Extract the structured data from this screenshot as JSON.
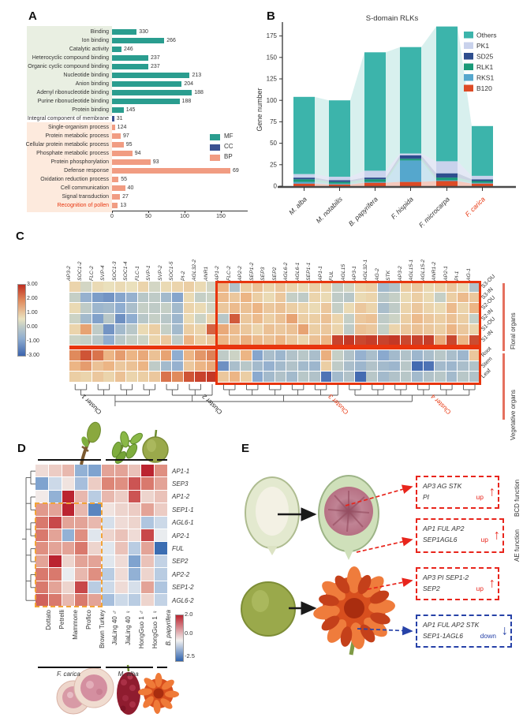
{
  "labels": {
    "a": "A",
    "b": "B",
    "c": "C",
    "d": "D",
    "e": "E"
  },
  "colors": {
    "accent_red": "#e8350e",
    "mf_green": "#2a9d8f",
    "cc_navy": "#3a5191",
    "bp_salmon": "#f19c82",
    "mf_tint": "#e9efe2",
    "bp_tint": "#fdeadd",
    "bracket_salmon": "#e5705e",
    "orange_dash": "#f2a437",
    "e_red": "#e8251c",
    "e_blue": "#2742a8"
  },
  "chart_data": [
    {
      "id": "A",
      "type": "bar",
      "orientation": "horizontal",
      "xlim": [
        0,
        170
      ],
      "xticks": [
        0,
        50,
        100,
        150
      ],
      "legend": [
        {
          "name": "MF",
          "color": "#2a9d8f"
        },
        {
          "name": "CC",
          "color": "#3a5191"
        },
        {
          "name": "BP",
          "color": "#f19c82"
        }
      ],
      "rows": [
        {
          "label": "Binding",
          "count": 330,
          "value": 34,
          "cat": "MF"
        },
        {
          "label": "Ion binding",
          "count": 266,
          "value": 72,
          "cat": "MF"
        },
        {
          "label": "Catalytic activity",
          "count": 246,
          "value": 13,
          "cat": "MF"
        },
        {
          "label": "Heterocyclic compound binding",
          "count": 237,
          "value": 50,
          "cat": "MF"
        },
        {
          "label": "Organic cyclic compound binding",
          "count": 237,
          "value": 50,
          "cat": "MF"
        },
        {
          "label": "Nucleotide binding",
          "count": 213,
          "value": 107,
          "cat": "MF"
        },
        {
          "label": "Anion binding",
          "count": 204,
          "value": 96,
          "cat": "MF"
        },
        {
          "label": "Adenyl ribonucleotide binding",
          "count": 188,
          "value": 110,
          "cat": "MF"
        },
        {
          "label": "Purine ribonucleotide binding",
          "count": 188,
          "value": 93,
          "cat": "MF"
        },
        {
          "label": "Protein binding",
          "count": 145,
          "value": 16,
          "cat": "MF"
        },
        {
          "label": "Integral component of membrane",
          "count": 31,
          "value": 3,
          "cat": "CC"
        },
        {
          "label": "Single-organism process",
          "count": 124,
          "value": 4,
          "cat": "BP"
        },
        {
          "label": "Protein metabolic process",
          "count": 97,
          "value": 12,
          "cat": "BP"
        },
        {
          "label": "Cellular protein metabolic process",
          "count": 95,
          "value": 16,
          "cat": "BP"
        },
        {
          "label": "Phosphate metabolic process",
          "count": 94,
          "value": 28,
          "cat": "BP"
        },
        {
          "label": "Protein phosphorylation",
          "count": 93,
          "value": 53,
          "cat": "BP"
        },
        {
          "label": "Defense response",
          "count": 69,
          "value": 163,
          "cat": "BP"
        },
        {
          "label": "Oxidation reduction process",
          "count": 55,
          "value": 9,
          "cat": "BP"
        },
        {
          "label": "Cell communication",
          "count": 40,
          "value": 18,
          "cat": "BP"
        },
        {
          "label": "Signal transduction",
          "count": 27,
          "value": 11,
          "cat": "BP"
        },
        {
          "label": "Recognition of pollen",
          "count": 13,
          "value": 8,
          "cat": "BP",
          "highlight": true
        }
      ]
    },
    {
      "id": "B",
      "type": "stacked-bar-flow",
      "title": "S-domain RLKs",
      "ylabel": "Gene number",
      "ylim": [
        0,
        190
      ],
      "yticks": [
        0,
        25,
        50,
        75,
        100,
        125,
        150,
        175
      ],
      "stack_order": [
        "B120",
        "RKS1",
        "RLK1",
        "SD25",
        "PK1",
        "Others"
      ],
      "legend": [
        {
          "name": "Others",
          "color": "#3cb4ab"
        },
        {
          "name": "PK1",
          "color": "#c9d2ec"
        },
        {
          "name": "SD25",
          "color": "#2e4e8e"
        },
        {
          "name": "RLK1",
          "color": "#199a78"
        },
        {
          "name": "RKS1",
          "color": "#55a7cd"
        },
        {
          "name": "B120",
          "color": "#dd4b26"
        }
      ],
      "species": [
        {
          "name": "M. alba",
          "highlight": false,
          "values": [
            3,
            2,
            3,
            2,
            4,
            90
          ]
        },
        {
          "name": "M. notabilis",
          "highlight": false,
          "values": [
            2,
            1,
            2,
            2,
            4,
            89
          ]
        },
        {
          "name": "B. papyrifera",
          "highlight": false,
          "values": [
            4,
            1,
            3,
            2,
            8,
            138
          ]
        },
        {
          "name": "F. hispida",
          "highlight": false,
          "values": [
            5,
            25,
            2,
            4,
            2,
            124
          ]
        },
        {
          "name": "F. microcarpa",
          "highlight": false,
          "values": [
            6,
            1,
            3,
            5,
            14,
            157
          ]
        },
        {
          "name": "F. carica",
          "highlight": true,
          "values": [
            3,
            1,
            2,
            2,
            4,
            58
          ]
        }
      ]
    },
    {
      "id": "C",
      "type": "heatmap",
      "colorbar_ticks": [
        "3.00",
        "2.00",
        "1.00",
        "0.00",
        "-1.00",
        "-3.00"
      ],
      "columns": [
        "AP3-2",
        "SOC1-2",
        "FLC-2",
        "SVP-4",
        "SOC1-3",
        "SOC1-4",
        "FLC-1",
        "SVP-1",
        "SVP-2",
        "SOC1-5",
        "PI-2",
        "AGL32-2",
        "ANR1",
        "AP1-2",
        "FLC-2",
        "AP2-2",
        "SEP1-2",
        "SEP3",
        "SEP2",
        "AGL6-2",
        "AGL6-1",
        "SEP1-1",
        "AP1-1",
        "FUL",
        "AGL15",
        "AP3-1",
        "AGL32-1",
        "AG-2",
        "STK",
        "AP3-2",
        "AGL15-1",
        "AGL15-2",
        "ANR1-2",
        "AP2-1",
        "PI-1",
        "AG-1"
      ],
      "rows": [
        "S3-OU",
        "S3-IN",
        "S2-OU",
        "S2-IN",
        "S1-OU",
        "S1-IN",
        "Root",
        "Stem",
        "Leaf"
      ],
      "row_groups": [
        {
          "label": "Floral organs",
          "rows": 6
        },
        {
          "label": "Vegetative organs",
          "rows": 3
        }
      ],
      "clusters": [
        {
          "label": "Cluster 1",
          "red": false
        },
        {
          "label": "Cluster 2",
          "red": false
        },
        {
          "label": "Cluster 3",
          "red": true
        },
        {
          "label": "Cluster 4",
          "red": true
        }
      ],
      "values": [
        [
          0.4,
          -0.2,
          0.3,
          0.2,
          0.3,
          0.2,
          0.4,
          -0.2,
          0.3,
          0.4,
          0.5,
          0.3,
          -0.2,
          0.9,
          -0.7,
          0.5,
          0.7,
          0.4,
          0.6,
          0.4,
          0.3,
          0.5,
          0.4,
          -0.4,
          -0.2,
          0.4,
          0.5,
          -0.9,
          -0.7,
          0.5,
          0.6,
          0.3,
          0.4,
          0.6,
          0.3,
          -0.7
        ],
        [
          -0.4,
          -1.1,
          -1.6,
          -1.8,
          -1.4,
          -1.1,
          -0.6,
          -0.5,
          -0.9,
          -1.4,
          0.3,
          -0.4,
          -0.3,
          0.8,
          0.6,
          0.9,
          0.5,
          0.3,
          0.6,
          -0.4,
          -0.5,
          0.4,
          0.3,
          -0.5,
          -0.6,
          0.3,
          0.4,
          -0.6,
          -0.4,
          0.3,
          0.5,
          0.3,
          -0.4,
          0.5,
          0.8,
          0.6
        ],
        [
          0.3,
          -0.5,
          -1.0,
          -0.9,
          -1.2,
          -0.8,
          -0.4,
          -0.5,
          -0.4,
          -0.9,
          0.4,
          0.3,
          -0.2,
          0.6,
          0.8,
          0.7,
          0.9,
          0.6,
          0.7,
          0.5,
          0.4,
          0.3,
          0.6,
          -0.4,
          0.3,
          0.6,
          0.4,
          -0.8,
          -0.5,
          0.4,
          0.6,
          0.4,
          0.3,
          0.8,
          0.4,
          0.9
        ],
        [
          -0.3,
          -0.9,
          -1.5,
          -0.6,
          -1.9,
          -1.2,
          -0.6,
          -0.4,
          -0.6,
          -1.0,
          0.3,
          -0.3,
          0.4,
          -0.6,
          2.2,
          0.6,
          0.8,
          0.5,
          0.7,
          1.2,
          0.5,
          0.5,
          0.7,
          0.4,
          -0.4,
          0.6,
          0.7,
          -0.5,
          -0.3,
          0.5,
          0.8,
          0.6,
          0.5,
          0.7,
          0.5,
          -0.4
        ],
        [
          0.4,
          1.2,
          -0.5,
          -1.8,
          -0.9,
          -0.6,
          0.3,
          0.5,
          -0.4,
          -0.9,
          0.5,
          0.4,
          2.1,
          1.1,
          0.8,
          0.6,
          0.4,
          0.7,
          0.6,
          0.7,
          1.2,
          0.5,
          0.6,
          0.4,
          -0.5,
          0.7,
          0.6,
          -0.4,
          0.4,
          0.6,
          0.7,
          0.6,
          0.5,
          0.9,
          0.6,
          0.4
        ],
        [
          -0.3,
          -0.4,
          -0.6,
          -1.2,
          -0.6,
          -0.4,
          -0.3,
          0.4,
          0.6,
          -0.5,
          0.9,
          0.5,
          0.6,
          0.9,
          0.7,
          1.0,
          0.8,
          0.7,
          0.9,
          0.6,
          0.4,
          0.7,
          0.9,
          2.6,
          2.8,
          2.5,
          2.7,
          2.6,
          2.8,
          2.5,
          2.6,
          2.7,
          1.1,
          2.5,
          0.9,
          2.4
        ],
        [
          1.6,
          2.3,
          1.9,
          0.9,
          1.3,
          0.9,
          1.1,
          0.7,
          1.2,
          -1.2,
          0.9,
          1.4,
          1.7,
          -0.5,
          -0.3,
          0.9,
          -1.4,
          -0.8,
          -1.0,
          -0.7,
          -0.6,
          -0.8,
          1.0,
          -0.4,
          -0.7,
          -1.1,
          -0.8,
          -1.3,
          -0.9,
          -0.7,
          -1.0,
          -0.8,
          -0.6,
          -0.8,
          -1.0,
          0.6
        ],
        [
          0.9,
          1.3,
          0.7,
          0.9,
          0.6,
          0.7,
          0.9,
          -0.5,
          -0.9,
          -1.1,
          0.6,
          0.9,
          1.1,
          -1.9,
          -0.8,
          -0.6,
          -0.9,
          -1.1,
          -0.9,
          -0.7,
          -0.9,
          -1.0,
          0.5,
          -0.5,
          -0.8,
          -1.0,
          -0.7,
          -0.9,
          -1.0,
          -0.6,
          -2.8,
          -2.6,
          -0.9,
          -1.0,
          -0.8,
          -0.7
        ],
        [
          0.5,
          0.4,
          0.6,
          0.4,
          0.7,
          0.4,
          0.5,
          0.6,
          1.9,
          1.6,
          2.3,
          2.6,
          2.8,
          0.6,
          0.9,
          0.5,
          -1.3,
          -0.9,
          -0.7,
          -0.9,
          -0.6,
          -0.7,
          -2.6,
          -0.9,
          -0.7,
          -2.8,
          -0.6,
          -0.9,
          -0.7,
          -0.6,
          -0.9,
          -0.7,
          -0.6,
          -0.9,
          -0.6,
          -0.7
        ]
      ]
    },
    {
      "id": "D",
      "type": "heatmap",
      "colorbar_ticks": [
        "2.0",
        "0.0",
        "-2.5"
      ],
      "rows": [
        "AP1-1",
        "SEP3",
        "AP1-2",
        "SEP1-1",
        "AGL6-1",
        "AP2-1",
        "FUL",
        "SEP2",
        "AP2-2",
        "SEP1-2",
        "AGL6-2"
      ],
      "columns": [
        "Dottato",
        "Petrelli",
        "Mammone",
        "Profico",
        "Brown Turkey",
        "JiaLing 40 ♂",
        "JiaLing 40 ♀",
        "HongGuo 1 ♂",
        "HongGuo 1 ♀",
        "B. papyrifera"
      ],
      "column_italic": [
        false,
        false,
        false,
        false,
        false,
        false,
        false,
        false,
        false,
        true
      ],
      "groups": [
        {
          "label": "F. carica",
          "cols": [
            0,
            4
          ]
        },
        {
          "label": "M. alba",
          "cols": [
            5,
            8
          ]
        },
        {
          "label": "",
          "cols": [
            9,
            9
          ]
        }
      ],
      "highlight_box": {
        "rows": [
          3,
          10
        ],
        "cols": [
          0,
          4
        ]
      },
      "values": [
        [
          0.3,
          0.5,
          0.7,
          -1.0,
          -1.2,
          0.9,
          0.9,
          0.6,
          2.0,
          1.1
        ],
        [
          -1.2,
          -0.4,
          0.2,
          -0.8,
          0.5,
          1.2,
          1.1,
          1.6,
          1.3,
          0.9
        ],
        [
          0.1,
          -1.0,
          2.0,
          0.7,
          -0.6,
          0.7,
          0.5,
          1.6,
          0.4,
          0.6
        ],
        [
          1.0,
          0.9,
          2.0,
          0.7,
          -1.8,
          0.2,
          0.4,
          0.5,
          0.9,
          0.5
        ],
        [
          1.3,
          1.7,
          0.9,
          0.9,
          0.7,
          -0.3,
          0.3,
          0.4,
          -0.7,
          -0.4
        ],
        [
          1.3,
          0.9,
          -1.0,
          1.1,
          -0.2,
          0.4,
          0.6,
          0.3,
          1.7,
          -0.1
        ],
        [
          1.1,
          0.9,
          0.9,
          1.3,
          0.4,
          -0.2,
          0.6,
          -0.6,
          0.9,
          -2.3
        ],
        [
          0.9,
          2.0,
          0.4,
          0.9,
          0.9,
          -0.2,
          0.3,
          -1.2,
          0.6,
          -0.5
        ],
        [
          1.3,
          1.3,
          -0.1,
          0.7,
          1.1,
          -0.6,
          0.3,
          -1.0,
          0.4,
          -0.6
        ],
        [
          1.3,
          0.9,
          0.4,
          1.7,
          -0.6,
          -0.4,
          0.3,
          -0.3,
          0.9,
          -0.7
        ],
        [
          1.5,
          1.3,
          0.7,
          1.3,
          0.9,
          -0.8,
          -0.4,
          -0.6,
          0.4,
          -0.5
        ]
      ]
    }
  ],
  "panelE": {
    "boxes": [
      {
        "lines": [
          "AP3 AG STK",
          "PI"
        ],
        "tag": "up",
        "style": "red"
      },
      {
        "lines": [
          "AP1 FUL AP2",
          "SEP1AGL6"
        ],
        "tag": "up",
        "style": "red"
      },
      {
        "lines": [
          "AP3 PI SEP1-2",
          "SEP2"
        ],
        "tag": "up",
        "style": "red"
      },
      {
        "lines": [
          "AP1 FUL AP2 STK",
          "SEP1-1AGL6"
        ],
        "tag": "down",
        "style": "blue"
      }
    ],
    "side_labels": [
      "BCD function",
      "AE function"
    ]
  }
}
